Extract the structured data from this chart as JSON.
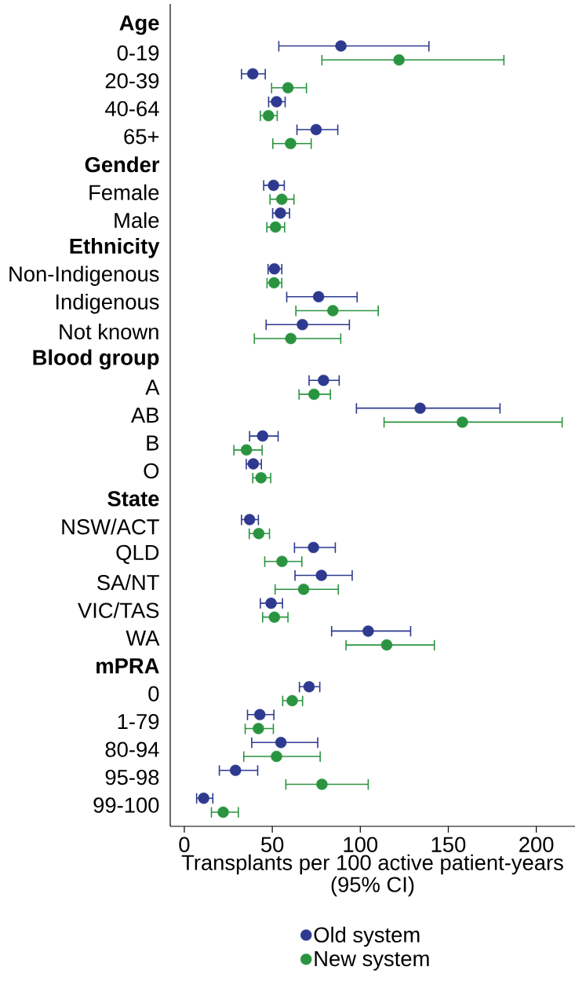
{
  "chart_data": {
    "type": "scatter",
    "orientation": "horizontal",
    "xlabel": "Transplants per 100 active patient-years (95% CI)",
    "marker": "circle",
    "legend": "bottom",
    "xlim": [
      -8,
      222
    ],
    "xticks": [
      0,
      50,
      100,
      150,
      200
    ],
    "categories": [
      "Age",
      "0-19",
      "20-39",
      "40-64",
      "65+",
      "Gender",
      "Female",
      "Male",
      "Ethnicity",
      "Non-Indigenous",
      "Indigenous",
      "Not known",
      "Blood group",
      "A",
      "AB",
      "B",
      "O",
      "State",
      "NSW/ACT",
      "QLD",
      "SA/NT",
      "VIC/TAS",
      "WA",
      "mPRA",
      "0",
      "1-79",
      "80-94",
      "95-98",
      "99-100"
    ],
    "series": [
      {
        "name": "Old system",
        "color": "#2e3a8f",
        "values": [
          null,
          89.0,
          38.9,
          52.4,
          74.9,
          null,
          50.7,
          54.6,
          null,
          51.2,
          76.3,
          67.1,
          null,
          79.1,
          134.0,
          44.5,
          39.2,
          null,
          37.1,
          73.4,
          77.9,
          49.3,
          104.5,
          null,
          70.9,
          42.9,
          54.9,
          29.1,
          11.0
        ],
        "errors": [
          null,
          [
            53.7,
            139.0
          ],
          [
            32.5,
            46.0
          ],
          [
            47.9,
            57.3
          ],
          [
            64.0,
            87.2
          ],
          null,
          [
            45.1,
            56.8
          ],
          [
            50.2,
            59.8
          ],
          null,
          [
            47.6,
            55.4
          ],
          [
            58.2,
            98.2
          ],
          [
            46.5,
            93.8
          ],
          null,
          [
            70.9,
            88.0
          ],
          [
            97.8,
            179.4
          ],
          [
            37.1,
            53.3
          ],
          [
            35.2,
            43.8
          ],
          null,
          [
            32.5,
            42.1
          ],
          [
            62.6,
            85.8
          ],
          [
            62.9,
            95.4
          ],
          [
            43.2,
            55.8
          ],
          [
            83.7,
            128.6
          ],
          null,
          [
            65.4,
            77.0
          ],
          [
            35.9,
            50.9
          ],
          [
            38.3,
            75.8
          ],
          [
            19.9,
            41.7
          ],
          [
            7.0,
            16.2
          ]
        ]
      },
      {
        "name": "New system",
        "color": "#2a9440",
        "values": [
          null,
          122.0,
          58.9,
          47.8,
          60.4,
          null,
          55.4,
          51.8,
          null,
          51.0,
          84.4,
          60.5,
          null,
          73.7,
          158.0,
          35.3,
          43.6,
          null,
          42.3,
          55.5,
          67.8,
          51.2,
          115.0,
          null,
          61.3,
          42.1,
          52.4,
          78.2,
          22.1
        ],
        "errors": [
          null,
          [
            78.2,
            181.6
          ],
          [
            49.6,
            69.4
          ],
          [
            43.2,
            52.8
          ],
          [
            50.3,
            72.1
          ],
          null,
          [
            48.7,
            62.3
          ],
          [
            46.9,
            57.0
          ],
          null,
          [
            47.0,
            55.4
          ],
          [
            63.4,
            110.2
          ],
          [
            39.8,
            88.9
          ],
          null,
          [
            65.2,
            83.0
          ],
          [
            113.5,
            214.7
          ],
          [
            28.2,
            44.2
          ],
          [
            38.9,
            49.1
          ],
          null,
          [
            36.9,
            48.4
          ],
          [
            45.7,
            66.8
          ],
          [
            51.6,
            87.5
          ],
          [
            44.5,
            58.9
          ],
          [
            91.9,
            142.1
          ],
          null,
          [
            55.9,
            67.2
          ],
          [
            34.6,
            50.6
          ],
          [
            33.8,
            77.2
          ],
          [
            57.7,
            104.5
          ],
          [
            15.4,
            30.7
          ]
        ]
      }
    ]
  }
}
